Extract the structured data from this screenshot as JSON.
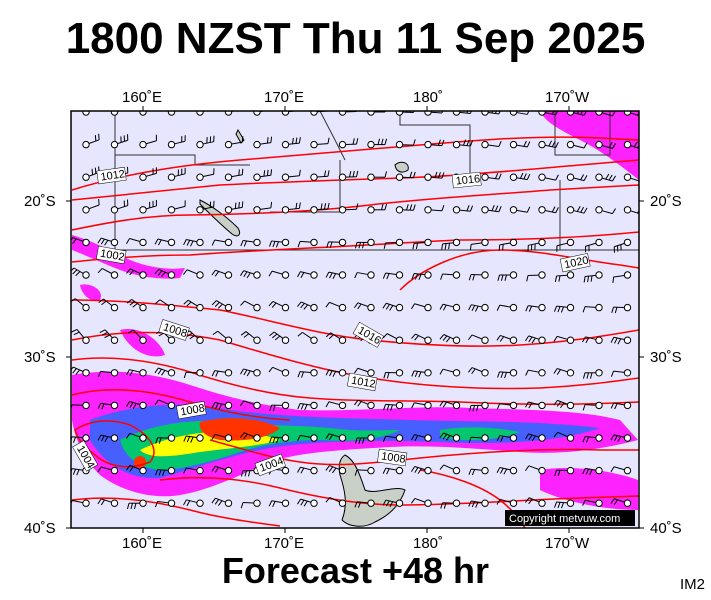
{
  "title": "1800 NZST Thu 11 Sep 2025",
  "subtitle": "Forecast +48 hr",
  "code": "IM2",
  "copyright": "Copyright metvuw.com",
  "axes": {
    "top_lon_labels": [
      "160˚E",
      "170˚E",
      "180˚",
      "170˚W"
    ],
    "bottom_lon_labels": [
      "160˚E",
      "170˚E",
      "180˚",
      "170˚W"
    ],
    "left_lat_labels": [
      "20˚S",
      "30˚S",
      "40˚S"
    ],
    "right_lat_labels": [
      "20˚S",
      "30˚S",
      "40˚S"
    ]
  },
  "isobars": {
    "units": "hPa",
    "labels": [
      "1012",
      "1016",
      "1002",
      "1020",
      "1008",
      "1016",
      "1012",
      "1008",
      "1004",
      "1004",
      "1008",
      "1004"
    ]
  },
  "colors": {
    "ocean": "#e6e6ff",
    "isobar": "#ff0000",
    "rain_light": "#ff00ff",
    "rain_moderate": "#3366ff",
    "rain_heavy": "#00cc66",
    "rain_very_heavy": "#ffff00",
    "rain_extreme": "#ff3300",
    "land": "#c8d0c8"
  }
}
